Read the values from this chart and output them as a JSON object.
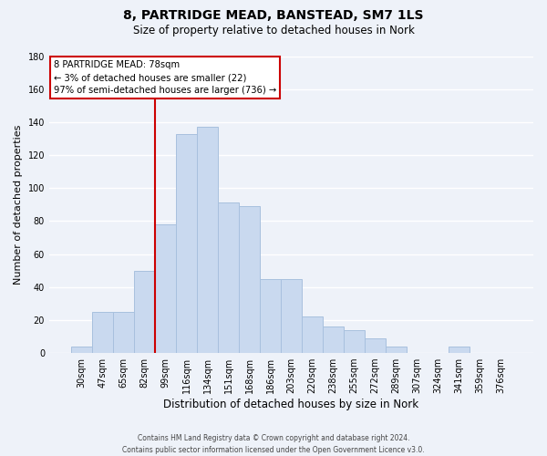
{
  "title": "8, PARTRIDGE MEAD, BANSTEAD, SM7 1LS",
  "subtitle": "Size of property relative to detached houses in Nork",
  "xlabel": "Distribution of detached houses by size in Nork",
  "ylabel": "Number of detached properties",
  "bar_labels": [
    "30sqm",
    "47sqm",
    "65sqm",
    "82sqm",
    "99sqm",
    "116sqm",
    "134sqm",
    "151sqm",
    "168sqm",
    "186sqm",
    "203sqm",
    "220sqm",
    "238sqm",
    "255sqm",
    "272sqm",
    "289sqm",
    "307sqm",
    "324sqm",
    "341sqm",
    "359sqm",
    "376sqm"
  ],
  "bar_values": [
    4,
    25,
    25,
    50,
    78,
    133,
    137,
    91,
    89,
    45,
    45,
    22,
    16,
    14,
    9,
    4,
    0,
    0,
    4,
    0,
    0
  ],
  "bar_color": "#c9d9ef",
  "bar_edge_color": "#a8c0de",
  "vline_color": "#cc0000",
  "vline_pos": 3,
  "ylim": [
    0,
    180
  ],
  "yticks": [
    0,
    20,
    40,
    60,
    80,
    100,
    120,
    140,
    160,
    180
  ],
  "annotation_title": "8 PARTRIDGE MEAD: 78sqm",
  "annotation_line1": "← 3% of detached houses are smaller (22)",
  "annotation_line2": "97% of semi-detached houses are larger (736) →",
  "annotation_box_color": "#ffffff",
  "annotation_box_edge": "#cc0000",
  "footer1": "Contains HM Land Registry data © Crown copyright and database right 2024.",
  "footer2": "Contains public sector information licensed under the Open Government Licence v3.0.",
  "bg_color": "#eef2f9",
  "grid_color": "#ffffff"
}
